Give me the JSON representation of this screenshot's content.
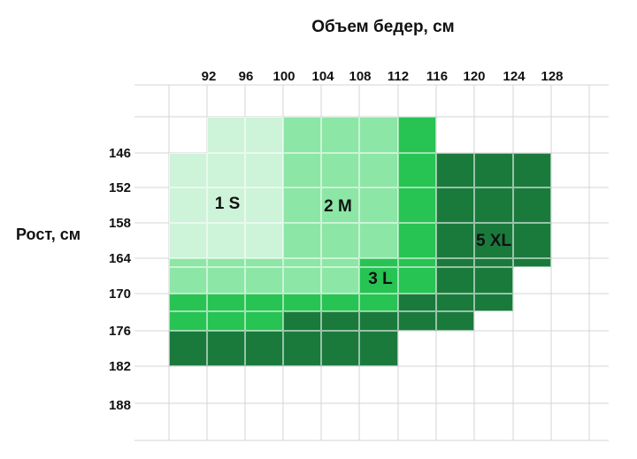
{
  "chart_data": {
    "type": "heatmap",
    "title": "Объем бедер, см",
    "xlabel": "Объем бедер, см",
    "ylabel": "Рост, см",
    "x_ticks": [
      "92",
      "96",
      "100",
      "104",
      "108",
      "112",
      "116",
      "120",
      "124",
      "128"
    ],
    "y_ticks": [
      "146",
      "152",
      "158",
      "164",
      "170",
      "176",
      "182",
      "188"
    ],
    "legend": "none",
    "grid": true,
    "colors": {
      "1 S": "#cdf3d8",
      "2 M": "#8ce6a5",
      "3 L": "#27c353",
      "5 XL": "#1a7a3c",
      "grid": "#d4d4d4"
    },
    "size_labels": [
      {
        "text": "1 S",
        "x": "96",
        "y": "158"
      },
      {
        "text": "2 M",
        "x": "104",
        "y": "158"
      },
      {
        "text": "3 L",
        "x": "112",
        "y": "170"
      },
      {
        "text": "5 XL",
        "x": "124",
        "y": "164"
      }
    ],
    "regions": [
      {
        "size": "1 S",
        "row": 0,
        "col_start": 1,
        "col_end": 3
      },
      {
        "size": "2 M",
        "row": 0,
        "col_start": 3,
        "col_end": 6
      },
      {
        "size": "3 L",
        "row": 0,
        "col_start": 6,
        "col_end": 7
      },
      {
        "size": "1 S",
        "row": 1,
        "col_start": 0,
        "col_end": 3
      },
      {
        "size": "2 M",
        "row": 1,
        "col_start": 3,
        "col_end": 6
      },
      {
        "size": "3 L",
        "row": 1,
        "col_start": 6,
        "col_end": 7
      },
      {
        "size": "5 XL",
        "row": 1,
        "col_start": 7,
        "col_end": 10
      },
      {
        "size": "1 S",
        "row": 2,
        "col_start": 0,
        "col_end": 3
      },
      {
        "size": "2 M",
        "row": 2,
        "col_start": 3,
        "col_end": 6
      },
      {
        "size": "3 L",
        "row": 2,
        "col_start": 6,
        "col_end": 7
      },
      {
        "size": "5 XL",
        "row": 2,
        "col_start": 7,
        "col_end": 10
      },
      {
        "size": "1 S",
        "row": 3,
        "col_start": 0,
        "col_end": 3
      },
      {
        "size": "2 M",
        "row": 3,
        "col_start": 3,
        "col_end": 6
      },
      {
        "size": "3 L",
        "row": 3,
        "col_start": 6,
        "col_end": 7
      },
      {
        "size": "5 XL",
        "row": 3,
        "col_start": 7,
        "col_end": 10
      },
      {
        "size": "2 M",
        "row": 4,
        "col_start": 0,
        "col_end": 5
      },
      {
        "size": "3 L",
        "row": 4,
        "col_start": 5,
        "col_end": 7
      },
      {
        "size": "5 XL",
        "row": 4,
        "col_start": 7,
        "col_end": 10
      },
      {
        "size": "2 M",
        "row": 5,
        "col_start": 0,
        "col_end": 5
      },
      {
        "size": "3 L",
        "row": 5,
        "col_start": 5,
        "col_end": 7
      },
      {
        "size": "5 XL",
        "row": 5,
        "col_start": 7,
        "col_end": 9
      },
      {
        "size": "3 L",
        "row": 6,
        "col_start": 0,
        "col_end": 5
      },
      {
        "size": "3 L",
        "row": 6,
        "col_start": 5,
        "col_end": 6
      },
      {
        "size": "5 XL",
        "row": 6,
        "col_start": 6,
        "col_end": 9
      },
      {
        "size": "3 L",
        "row": 7,
        "col_start": 0,
        "col_end": 3
      },
      {
        "size": "5 XL",
        "row": 7,
        "col_start": 3,
        "col_end": 8
      },
      {
        "size": "5 XL",
        "row": 8,
        "col_start": 0,
        "col_end": 4
      },
      {
        "size": "5 XL",
        "row": 8,
        "col_start": 4,
        "col_end": 6
      }
    ]
  }
}
